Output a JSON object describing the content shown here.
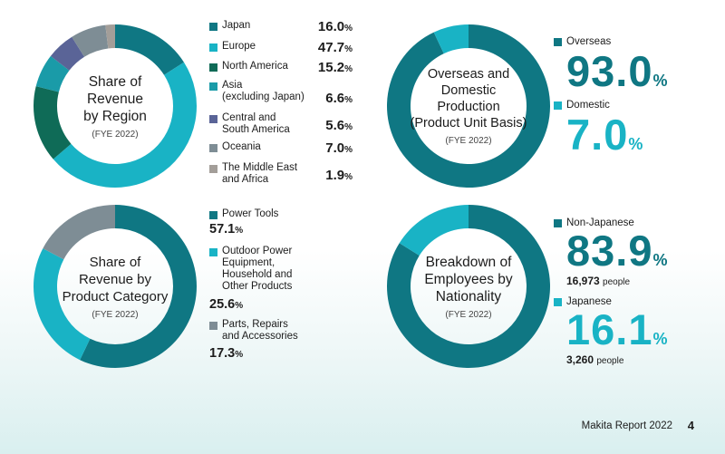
{
  "colors": {
    "dark_teal": "#0f7783",
    "cyan": "#19b3c5",
    "forest_green": "#0f6b57",
    "light_teal": "#1a9ba8",
    "slate_blue": "#5a6497",
    "gray": "#7e8d95",
    "taupe": "#a39e99"
  },
  "region": {
    "title": "Share of\nRevenue\nby Region",
    "fye": "(FYE 2022)",
    "unit": "%",
    "items": [
      {
        "name": "Japan",
        "value": "16.0",
        "color": "#0f7783"
      },
      {
        "name": "Europe",
        "value": "47.7",
        "color": "#19b3c5"
      },
      {
        "name": "North America",
        "value": "15.2",
        "color": "#0f6b57"
      },
      {
        "name": "Asia\n(excluding Japan)",
        "value": "6.6",
        "color": "#1a9ba8"
      },
      {
        "name": "Central and\nSouth America",
        "value": "5.6",
        "color": "#5a6497"
      },
      {
        "name": "Oceania",
        "value": "7.0",
        "color": "#7e8d95"
      },
      {
        "name": "The Middle East\nand Africa",
        "value": "1.9",
        "color": "#a39e99"
      }
    ]
  },
  "production": {
    "title": "Overseas and\nDomestic\nProduction\n(Product Unit Basis)",
    "fye": "(FYE 2022)",
    "unit": "%",
    "items": [
      {
        "name": "Overseas",
        "value": "93.0",
        "color": "#0f7783"
      },
      {
        "name": "Domestic",
        "value": "7.0",
        "color": "#19b3c5"
      }
    ]
  },
  "category": {
    "title": "Share of\nRevenue by\nProduct Category",
    "fye": "(FYE 2022)",
    "unit": "%",
    "items": [
      {
        "name": "Power Tools",
        "value": "57.1",
        "color": "#0f7783"
      },
      {
        "name": "Outdoor Power\nEquipment,\nHousehold and\nOther Products",
        "value": "25.6",
        "color": "#19b3c5"
      },
      {
        "name": "Parts, Repairs\nand Accessories",
        "value": "17.3",
        "color": "#7e8d95"
      }
    ]
  },
  "nationality": {
    "title": "Breakdown of\nEmployees by\nNationality",
    "fye": "(FYE 2022)",
    "unit": "%",
    "people_unit": "people",
    "items": [
      {
        "name": "Non-Japanese",
        "value": "83.9",
        "people": "16,973",
        "color": "#0f7783"
      },
      {
        "name": "Japanese",
        "value": "16.1",
        "people": "3,260",
        "color": "#19b3c5"
      }
    ]
  },
  "chart_data": [
    {
      "type": "pie",
      "title": "Share of Revenue by Region",
      "subtitle": "(FYE 2022)",
      "categories": [
        "Japan",
        "Europe",
        "North America",
        "Asia (excluding Japan)",
        "Central and South America",
        "Oceania",
        "The Middle East and Africa"
      ],
      "values": [
        16.0,
        47.7,
        15.2,
        6.6,
        5.6,
        7.0,
        1.9
      ],
      "unit": "%"
    },
    {
      "type": "pie",
      "title": "Overseas and Domestic Production (Product Unit Basis)",
      "subtitle": "(FYE 2022)",
      "categories": [
        "Overseas",
        "Domestic"
      ],
      "values": [
        93.0,
        7.0
      ],
      "unit": "%"
    },
    {
      "type": "pie",
      "title": "Share of Revenue by Product Category",
      "subtitle": "(FYE 2022)",
      "categories": [
        "Power Tools",
        "Outdoor Power Equipment, Household and Other Products",
        "Parts, Repairs and Accessories"
      ],
      "values": [
        57.1,
        25.6,
        17.3
      ],
      "unit": "%"
    },
    {
      "type": "pie",
      "title": "Breakdown of Employees by Nationality",
      "subtitle": "(FYE 2022)",
      "categories": [
        "Non-Japanese",
        "Japanese"
      ],
      "values": [
        83.9,
        16.1
      ],
      "people": [
        16973,
        3260
      ],
      "unit": "%"
    }
  ],
  "footer": {
    "report": "Makita Report 2022",
    "page": "4"
  }
}
